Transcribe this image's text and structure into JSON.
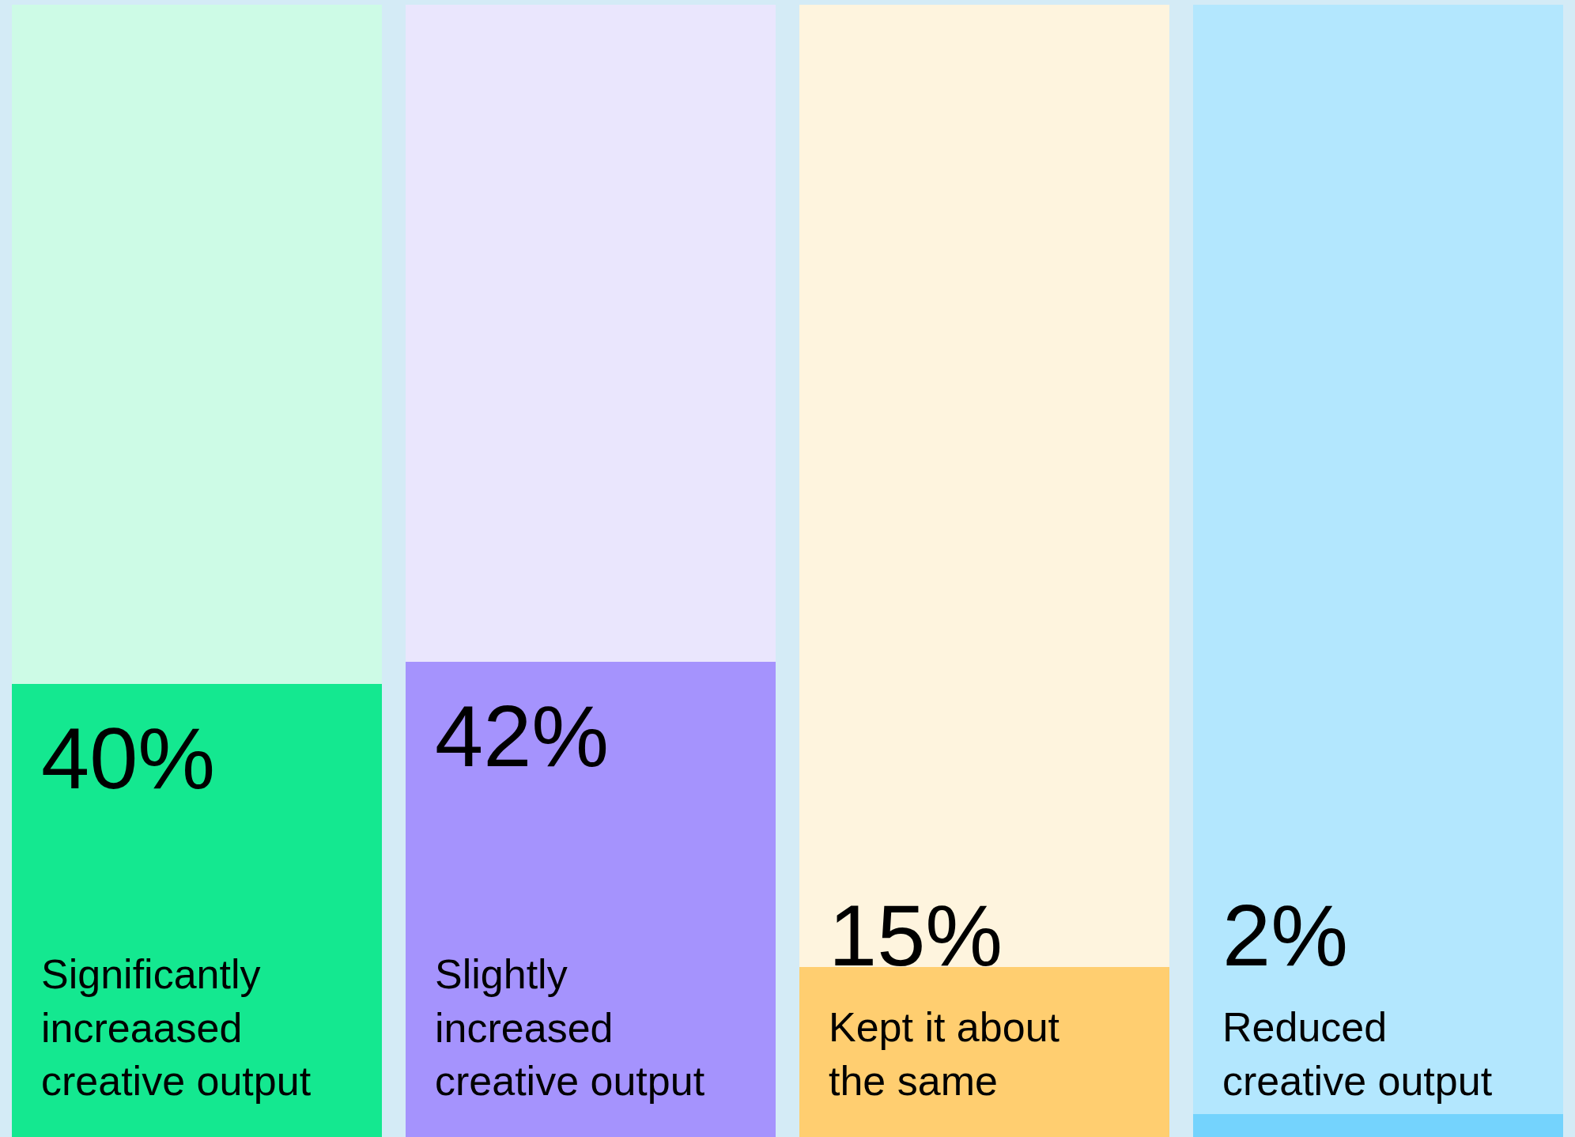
{
  "chart_data": {
    "type": "bar",
    "stacked": true,
    "categories": [
      "Significantly increaased creative output",
      "Slightly increased creative output",
      "Kept it about the same",
      "Reduced creative output"
    ],
    "series": [
      {
        "colors": [
          "#14e890",
          "#a593fd",
          "#ffce70",
          "#74d3fd"
        ],
        "values": [
          40,
          42,
          15,
          2
        ],
        "value_labels": [
          "40%",
          "42%",
          "15%",
          "2%"
        ]
      },
      {
        "colors": [
          "#cdfbe6",
          "#eae6fd",
          "#fef4de",
          "#b3e7fe"
        ],
        "values": [
          60,
          58,
          85,
          98
        ]
      }
    ]
  }
}
